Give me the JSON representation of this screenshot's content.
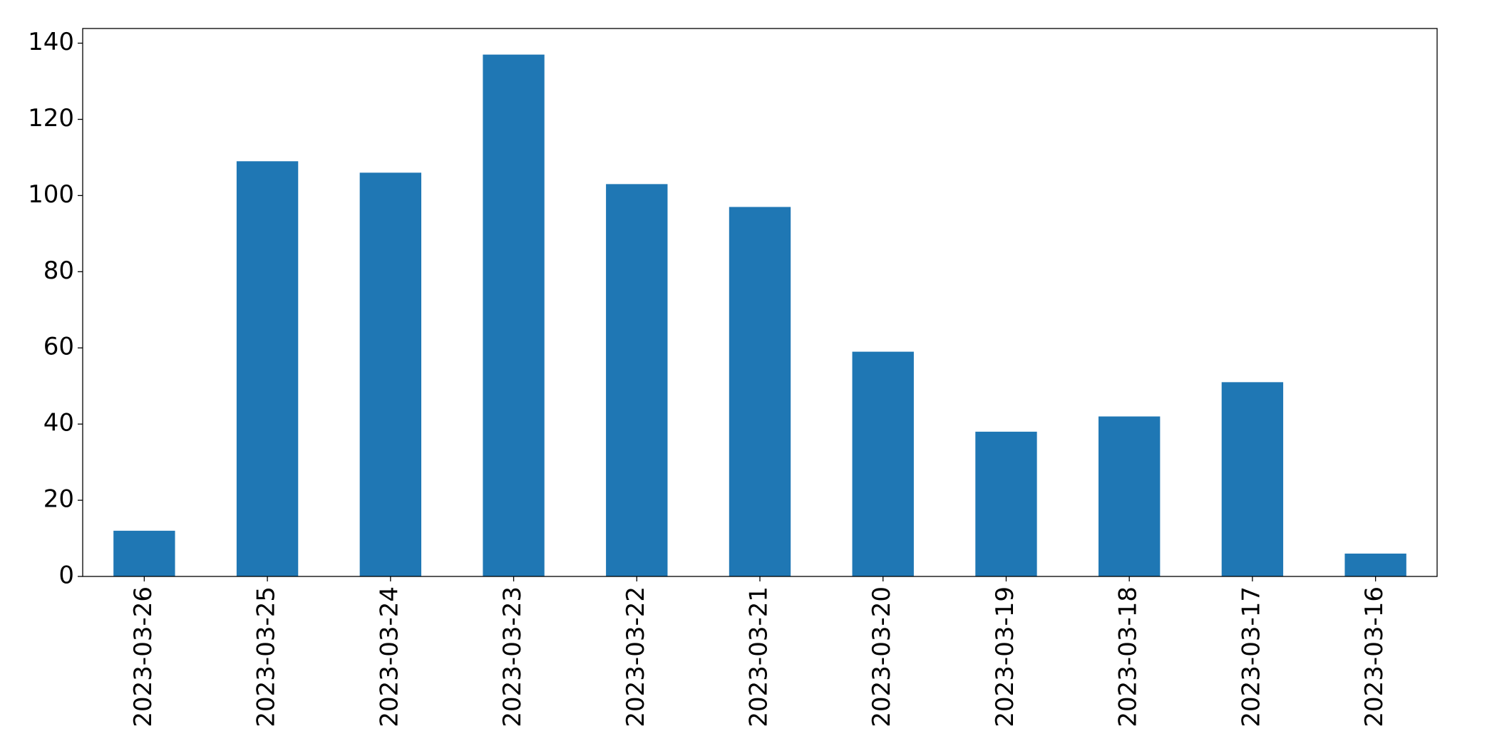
{
  "chart_data": {
    "type": "bar",
    "categories": [
      "2023-03-26",
      "2023-03-25",
      "2023-03-24",
      "2023-03-23",
      "2023-03-22",
      "2023-03-21",
      "2023-03-20",
      "2023-03-19",
      "2023-03-18",
      "2023-03-17",
      "2023-03-16"
    ],
    "values": [
      12,
      109,
      106,
      137,
      103,
      97,
      59,
      38,
      42,
      51,
      6
    ],
    "color": "#1f77b4",
    "ylim": [
      0,
      143.85
    ],
    "yticks": [
      0,
      20,
      40,
      60,
      80,
      100,
      120,
      140
    ],
    "grid": false
  }
}
